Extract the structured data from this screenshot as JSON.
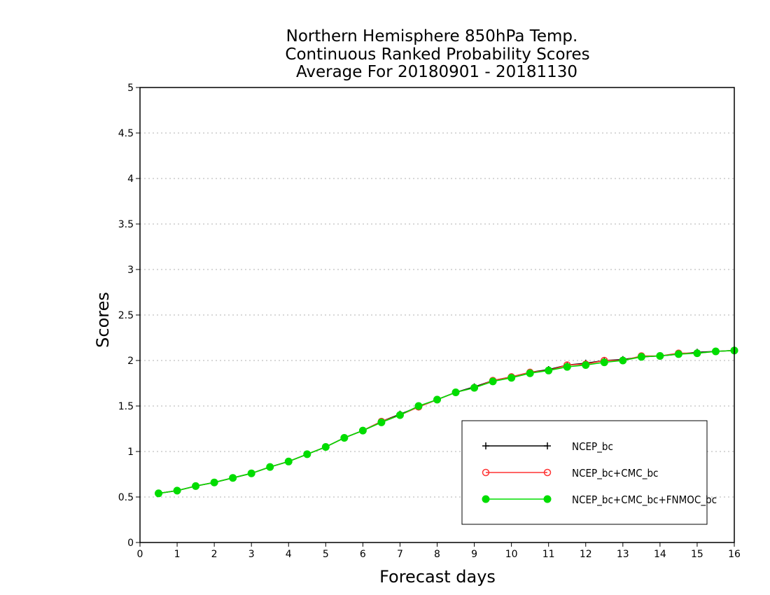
{
  "chart_data": {
    "type": "line",
    "title_lines": [
      "Northern Hemisphere 850hPa Temp.",
      "Continuous Ranked Probability Scores",
      "Average For 20180901 - 20181130"
    ],
    "xlabel": "Forecast days",
    "ylabel": "Scores",
    "xlim": [
      0,
      16
    ],
    "ylim": [
      0,
      5
    ],
    "xticks": [
      "0",
      "1",
      "2",
      "3",
      "4",
      "5",
      "6",
      "7",
      "8",
      "9",
      "10",
      "11",
      "12",
      "13",
      "14",
      "15",
      "16"
    ],
    "yticks": [
      "0",
      "0.5",
      "1",
      "1.5",
      "2",
      "2.5",
      "3",
      "3.5",
      "4",
      "4.5",
      "5"
    ],
    "grid": "horizontal dotted",
    "legend_position": "bottom-right",
    "x": [
      0.5,
      1,
      1.5,
      2,
      2.5,
      3,
      3.5,
      4,
      4.5,
      5,
      5.5,
      6,
      6.5,
      7,
      7.5,
      8,
      8.5,
      9,
      9.5,
      10,
      10.5,
      11,
      11.5,
      12,
      12.5,
      13,
      13.5,
      14,
      14.5,
      15,
      15.5,
      16
    ],
    "series": [
      {
        "name": "NCEP_bc",
        "color": "#000000",
        "marker": "plus",
        "values": [
          0.54,
          0.57,
          0.62,
          0.66,
          0.71,
          0.76,
          0.83,
          0.89,
          0.97,
          1.05,
          1.15,
          1.23,
          1.33,
          1.41,
          1.49,
          1.57,
          1.65,
          1.71,
          1.78,
          1.82,
          1.87,
          1.9,
          1.95,
          1.97,
          2.0,
          2.01,
          2.04,
          2.05,
          2.07,
          2.09,
          2.1,
          2.11
        ]
      },
      {
        "name": "NCEP_bc+CMC_bc",
        "color": "#ff3333",
        "marker": "open-circle",
        "values": [
          0.54,
          0.57,
          0.62,
          0.66,
          0.71,
          0.76,
          0.83,
          0.89,
          0.97,
          1.05,
          1.15,
          1.23,
          1.33,
          1.4,
          1.49,
          1.57,
          1.65,
          1.7,
          1.78,
          1.82,
          1.87,
          1.89,
          1.95,
          1.96,
          2.0,
          2.0,
          2.05,
          2.05,
          2.08,
          2.08,
          2.1,
          2.11
        ]
      },
      {
        "name": "NCEP_bc+CMC_bc+FNMOC_bc",
        "color": "#00dd00",
        "marker": "filled-circle",
        "values": [
          0.54,
          0.57,
          0.62,
          0.66,
          0.71,
          0.76,
          0.83,
          0.89,
          0.97,
          1.05,
          1.15,
          1.23,
          1.32,
          1.4,
          1.5,
          1.57,
          1.65,
          1.7,
          1.77,
          1.81,
          1.86,
          1.89,
          1.93,
          1.95,
          1.98,
          2.0,
          2.04,
          2.05,
          2.07,
          2.08,
          2.1,
          2.11
        ]
      }
    ]
  }
}
